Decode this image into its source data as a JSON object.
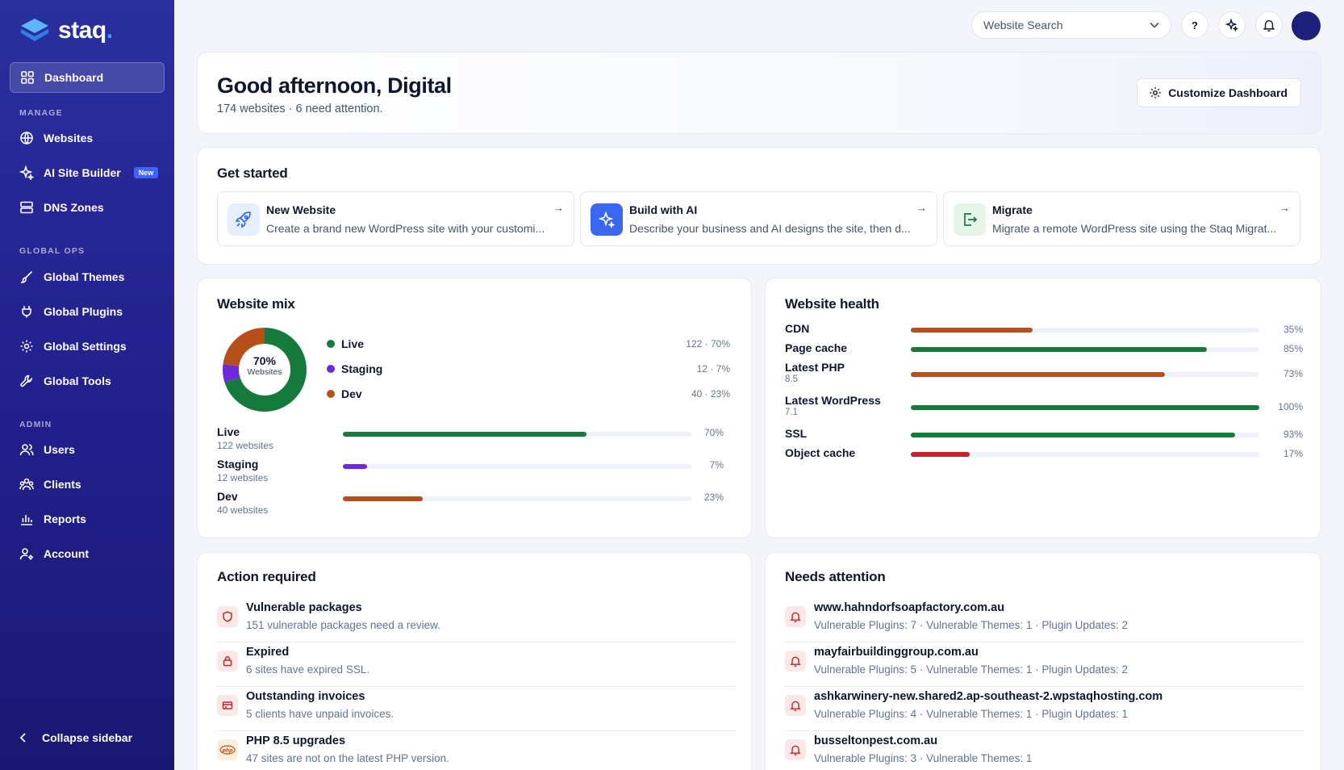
{
  "brand": {
    "name": "staq",
    "dot": "."
  },
  "sidebar": {
    "dashboard": "Dashboard",
    "manage_title": "MANAGE",
    "websites": "Websites",
    "ai_builder": "AI Site Builder",
    "new_badge": "New",
    "dns": "DNS Zones",
    "globalops_title": "GLOBAL OPS",
    "global_themes": "Global Themes",
    "global_plugins": "Global Plugins",
    "global_settings": "Global Settings",
    "global_tools": "Global Tools",
    "admin_title": "ADMIN",
    "users": "Users",
    "clients": "Clients",
    "reports": "Reports",
    "account": "Account",
    "collapse": "Collapse sidebar"
  },
  "topbar": {
    "search_placeholder": "Website Search",
    "help_label": "?"
  },
  "welcome": {
    "greeting": "Good afternoon, Digital",
    "summary": "174 websites · 6 need attention.",
    "customize": "Customize Dashboard"
  },
  "get_started": {
    "title": "Get started",
    "tiles": [
      {
        "title": "New Website",
        "desc": "Create a brand new WordPress site with your customi..."
      },
      {
        "title": "Build with AI",
        "desc": "Describe your business and AI designs the site, then d..."
      },
      {
        "title": "Migrate",
        "desc": "Migrate a remote WordPress site using the Staq Migrat..."
      }
    ]
  },
  "website_mix": {
    "title": "Website mix",
    "donut_pct": "70%",
    "donut_label": "Websites",
    "legend": [
      {
        "name": "Live",
        "value": "122 · 70%",
        "color": "#157a3c"
      },
      {
        "name": "Staging",
        "value": "12 · 7%",
        "color": "#6d28d9"
      },
      {
        "name": "Dev",
        "value": "40 · 23%",
        "color": "#b5501a"
      }
    ],
    "bars": [
      {
        "name": "Live",
        "count": "122 websites",
        "pct_label": "70%",
        "pct": 0.7,
        "color": "#157a3c"
      },
      {
        "name": "Staging",
        "count": "12 websites",
        "pct_label": "7%",
        "pct": 0.07,
        "color": "#6d28d9"
      },
      {
        "name": "Dev",
        "count": "40 websites",
        "pct_label": "23%",
        "pct": 0.23,
        "color": "#b5501a"
      }
    ]
  },
  "website_health": {
    "title": "Website health",
    "rows": [
      {
        "name": "CDN",
        "sub": "",
        "pct_label": "35%",
        "pct": 0.35,
        "color": "#b5501a"
      },
      {
        "name": "Page cache",
        "sub": "",
        "pct_label": "85%",
        "pct": 0.85,
        "color": "#157a3c"
      },
      {
        "name": "Latest PHP",
        "sub": "8.5",
        "pct_label": "73%",
        "pct": 0.73,
        "color": "#b5501a"
      },
      {
        "name": "Latest WordPress",
        "sub": "7.1",
        "pct_label": "100%",
        "pct": 1.0,
        "color": "#157a3c"
      },
      {
        "name": "SSL",
        "sub": "",
        "pct_label": "93%",
        "pct": 0.93,
        "color": "#157a3c"
      },
      {
        "name": "Object cache",
        "sub": "",
        "pct_label": "17%",
        "pct": 0.17,
        "color": "#c0262d"
      }
    ]
  },
  "action_required": {
    "title": "Action required",
    "items": [
      {
        "title": "Vulnerable packages",
        "desc": "151 vulnerable packages need a review.",
        "icon": "shield-icon"
      },
      {
        "title": "Expired",
        "desc": "6 sites have expired SSL.",
        "icon": "lock-icon"
      },
      {
        "title": "Outstanding invoices",
        "desc": "5 clients have unpaid invoices.",
        "icon": "credit-card-icon"
      },
      {
        "title": "PHP 8.5 upgrades",
        "desc": "47 sites are not on the latest PHP version.",
        "icon": "php-icon"
      }
    ]
  },
  "needs_attention": {
    "title": "Needs attention",
    "items": [
      {
        "title": "www.hahndorfsoapfactory.com.au",
        "desc": "Vulnerable Plugins: 7 · Vulnerable Themes: 1 · Plugin Updates: 2"
      },
      {
        "title": "mayfairbuildinggroup.com.au",
        "desc": "Vulnerable Plugins: 5 · Vulnerable Themes: 1 · Plugin Updates: 2"
      },
      {
        "title": "ashkarwinery-new.shared2.ap-southeast-2.wpstaqhosting.com",
        "desc": "Vulnerable Plugins: 4 · Vulnerable Themes: 1 · Plugin Updates: 1"
      },
      {
        "title": "busseltonpest.com.au",
        "desc": "Vulnerable Plugins: 3 · Vulnerable Themes: 1"
      }
    ]
  },
  "colors": {
    "live": "#157a3c",
    "staging": "#6d28d9",
    "dev": "#b5501a",
    "danger": "#c0262d",
    "sidebar": "#2a2f9e"
  }
}
